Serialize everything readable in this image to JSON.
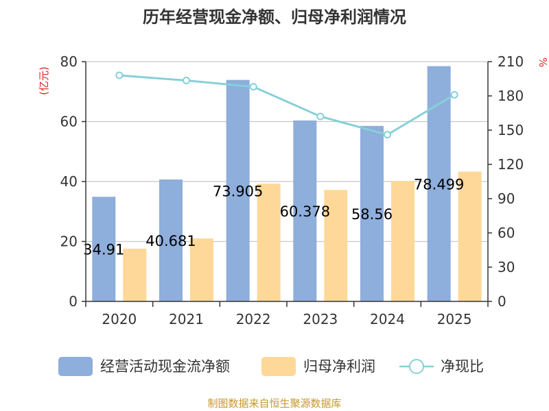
{
  "chart_data": {
    "type": "bar",
    "title": "历年经营现金净额、归母净利润情况",
    "categories": [
      "2020",
      "2021",
      "2022",
      "2023",
      "2024",
      "2025"
    ],
    "y_left": {
      "label": "(亿元)",
      "min": 0,
      "max": 80,
      "ticks": [
        0,
        20,
        40,
        60,
        80
      ]
    },
    "y_right": {
      "label": "%",
      "min": 0,
      "max": 210,
      "ticks": [
        0,
        30,
        60,
        90,
        120,
        150,
        180,
        210
      ]
    },
    "grid": true,
    "series": [
      {
        "name": "经营活动现金流净额",
        "type": "bar",
        "axis": "left",
        "color": "#8eaedb",
        "values": [
          34.91,
          40.681,
          73.905,
          60.378,
          58.56,
          78.499
        ],
        "labels": [
          "34.91",
          "40.681",
          "73.905",
          "60.378",
          "58.56",
          "78.499"
        ]
      },
      {
        "name": "归母净利润",
        "type": "bar",
        "axis": "left",
        "color": "#fed898",
        "values": [
          17.6,
          21.0,
          39.3,
          37.2,
          40.2,
          43.3
        ]
      },
      {
        "name": "净现比",
        "type": "line",
        "axis": "right",
        "color": "#86d0d8",
        "values": [
          198,
          193.5,
          188,
          162,
          146,
          181
        ]
      }
    ],
    "legend_position": "bottom",
    "source": "制图数据来自恒生聚源数据库"
  }
}
